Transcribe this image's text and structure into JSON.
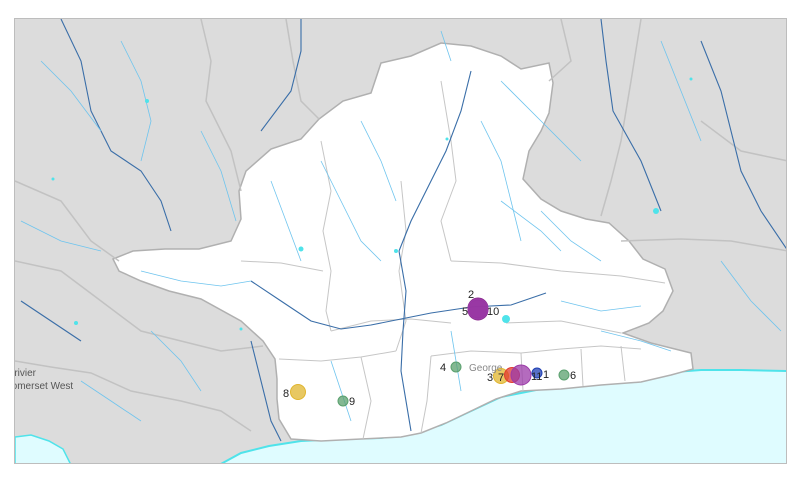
{
  "map": {
    "colors": {
      "land": "#dcdcdc",
      "catchment": "#ffffff",
      "boundary": "#b8b8b8",
      "river_major": "#3a6ea8",
      "river_minor": "#6ec4ee",
      "sea": "#dffcff",
      "coast": "#4fe3ea"
    },
    "place_labels": {
      "west_top": "sterivier",
      "west_bottom": "Somerset West",
      "town": "George"
    },
    "markers": [
      {
        "id": "1",
        "color": "#1f3fb3",
        "size": "small"
      },
      {
        "id": "2",
        "color": "#8b2a8f",
        "size": "large"
      },
      {
        "id": "3",
        "color": "#e0b52e",
        "size": "medium"
      },
      {
        "id": "4",
        "color": "#5aa06e",
        "size": "small"
      },
      {
        "id": "5",
        "color": "#8b2a8f",
        "size": "large"
      },
      {
        "id": "6",
        "color": "#5aa06e",
        "size": "small"
      },
      {
        "id": "7",
        "color": "#e03a2e",
        "size": "medium"
      },
      {
        "id": "8",
        "color": "#e0b52e",
        "size": "medium"
      },
      {
        "id": "9",
        "color": "#5aa06e",
        "size": "small"
      },
      {
        "id": "10",
        "color": "#9b3aa8",
        "size": "large"
      },
      {
        "id": "11",
        "color": "#9b3aa8",
        "size": "large"
      }
    ]
  }
}
